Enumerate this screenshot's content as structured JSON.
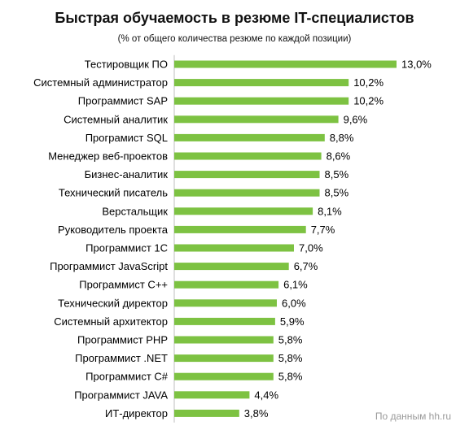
{
  "chart_data": {
    "type": "bar",
    "orientation": "horizontal",
    "title": "Быстрая обучаемость в резюме IT-специалистов",
    "subtitle": "(% от общего количества резюме по  каждой позиции)",
    "categories": [
      "Тестировщик ПО",
      "Системный администратор",
      "Программист SAP",
      "Системный аналитик",
      "Програмист SQL",
      "Менеджер веб-проектов",
      "Бизнес-аналитик",
      "Технический писатель",
      "Верстальщик",
      "Руководитель проекта",
      "Программист 1С",
      "Программист JavaScript",
      "Программист С++",
      "Технический директор",
      "Системный архитектор",
      "Программист PHP",
      "Программист .NET",
      "Программист С#",
      "Программист JAVA",
      "ИТ-директор"
    ],
    "values": [
      13.0,
      10.2,
      10.2,
      9.6,
      8.8,
      8.6,
      8.5,
      8.5,
      8.1,
      7.7,
      7.0,
      6.7,
      6.1,
      6.0,
      5.9,
      5.8,
      5.8,
      5.8,
      4.4,
      3.8
    ],
    "value_labels": [
      "13,0%",
      "10,2%",
      "10,2%",
      "9,6%",
      "8,8%",
      "8,6%",
      "8,5%",
      "8,5%",
      "8,1%",
      "7,7%",
      "7,0%",
      "6,7%",
      "6,1%",
      "6,0%",
      "5,9%",
      "5,8%",
      "5,8%",
      "5,8%",
      "4,4%",
      "3,8%"
    ],
    "xlim": [
      0,
      13.0
    ],
    "grid": false,
    "bar_color": "#7dc242"
  },
  "source_note": "По данным hh.ru"
}
